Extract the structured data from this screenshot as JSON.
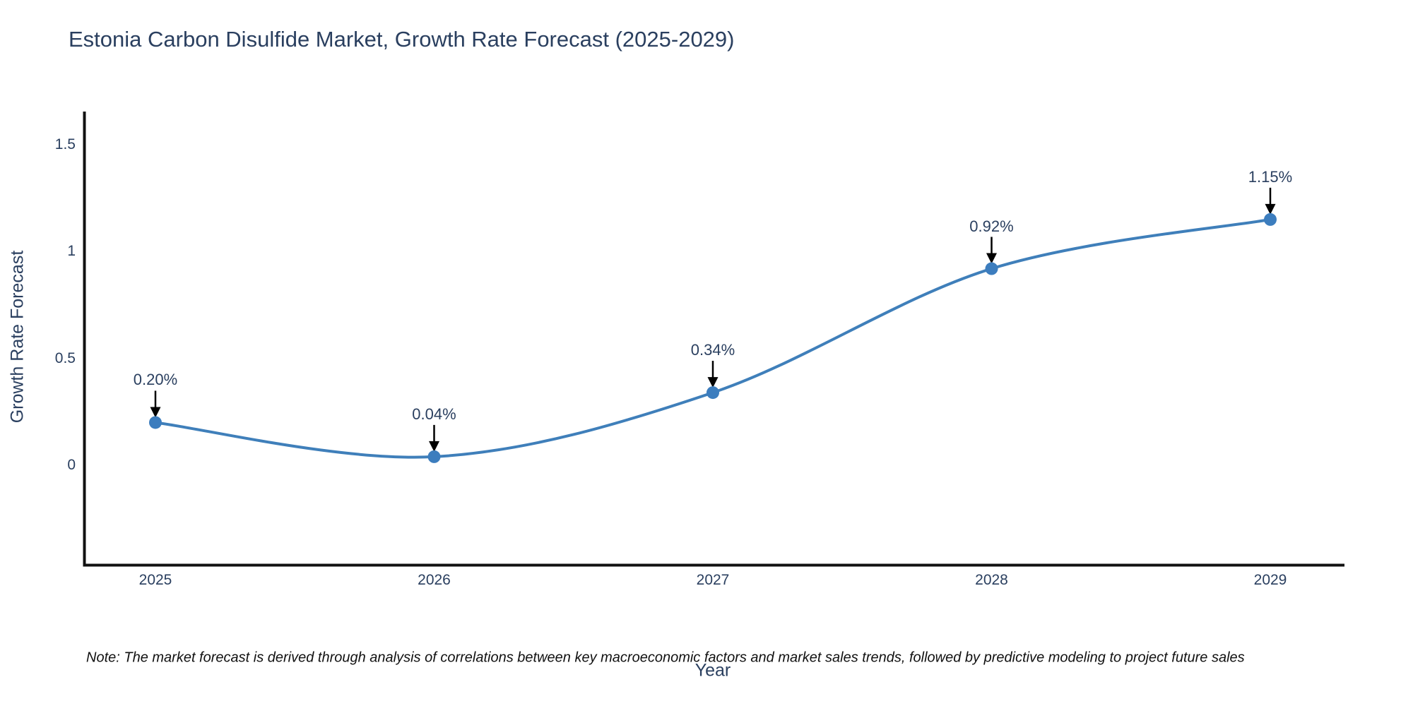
{
  "title": {
    "text": "Estonia Carbon Disulfide Market, Growth Rate Forecast (2025-2029)"
  },
  "chart_data": {
    "type": "line",
    "title": "Estonia Carbon Disulfide Market, Growth Rate Forecast (2025-2029)",
    "x": [
      2025,
      2026,
      2027,
      2028,
      2029
    ],
    "xtick_labels": [
      "2025",
      "2026",
      "2027",
      "2028",
      "2029"
    ],
    "series": [
      {
        "name": "Growth Rate Forecast",
        "values": [
          0.2,
          0.04,
          0.34,
          0.92,
          1.15
        ]
      }
    ],
    "point_labels": [
      "0.20%",
      "0.04%",
      "0.34%",
      "0.92%",
      "1.15%"
    ],
    "xlabel": "Year",
    "ylabel": "Growth Rate Forecast",
    "yticks": [
      0,
      0.5,
      1,
      1.5
    ],
    "ytick_labels": [
      "0",
      "0.5",
      "1",
      "1.5"
    ],
    "ylim": [
      -0.47,
      1.65
    ],
    "xlim": [
      2024.74,
      2029.27
    ],
    "grid": false,
    "legend_position": "none",
    "line_shape": "spline",
    "colors": {
      "line": "#3f7fba",
      "marker": "#3c7dbe",
      "axis": "#111111",
      "text": "#2a3f5f",
      "arrow": "#000000"
    }
  },
  "note": {
    "text": "Note: The market forecast is derived through analysis of correlations between key macroeconomic factors and market sales trends, followed by predictive modeling to project future sales"
  }
}
